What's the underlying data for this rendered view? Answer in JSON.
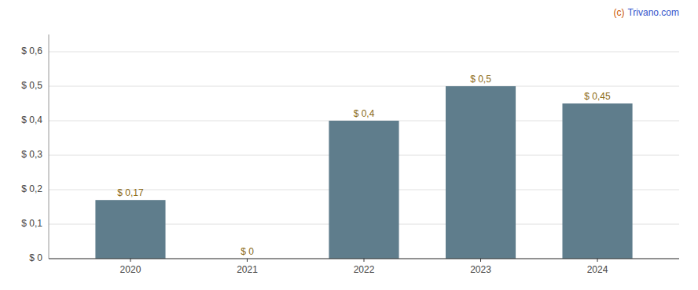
{
  "chart_data": {
    "type": "bar",
    "x": [
      2020,
      2021,
      2022,
      2023,
      2024
    ],
    "values": [
      0.17,
      0.0,
      0.4,
      0.5,
      0.45
    ],
    "value_labels": [
      "$ 0,17",
      "$ 0",
      "$ 0,4",
      "$ 0,5",
      "$ 0,45"
    ],
    "data_labels": true,
    "color": "#5f7d8c",
    "xlim": [
      2019.3,
      2024.7
    ],
    "xticks": [
      2020,
      2021,
      2022,
      2023,
      2024
    ],
    "ylim": [
      0,
      0.65
    ],
    "yticks": [
      {
        "value": 0.0,
        "label": "$ 0"
      },
      {
        "value": 0.1,
        "label": "$ 0,1"
      },
      {
        "value": 0.2,
        "label": "$ 0,2"
      },
      {
        "value": 0.3,
        "label": "$ 0,3"
      },
      {
        "value": 0.4,
        "label": "$ 0,4"
      },
      {
        "value": 0.5,
        "label": "$ 0,5"
      },
      {
        "value": 0.6,
        "label": "$ 0,6"
      }
    ],
    "grid": true,
    "annotations": [
      {
        "text": "(c)",
        "color": "#cc5500"
      },
      {
        "text": "Trivano.com",
        "color": "#3355cc"
      }
    ]
  }
}
